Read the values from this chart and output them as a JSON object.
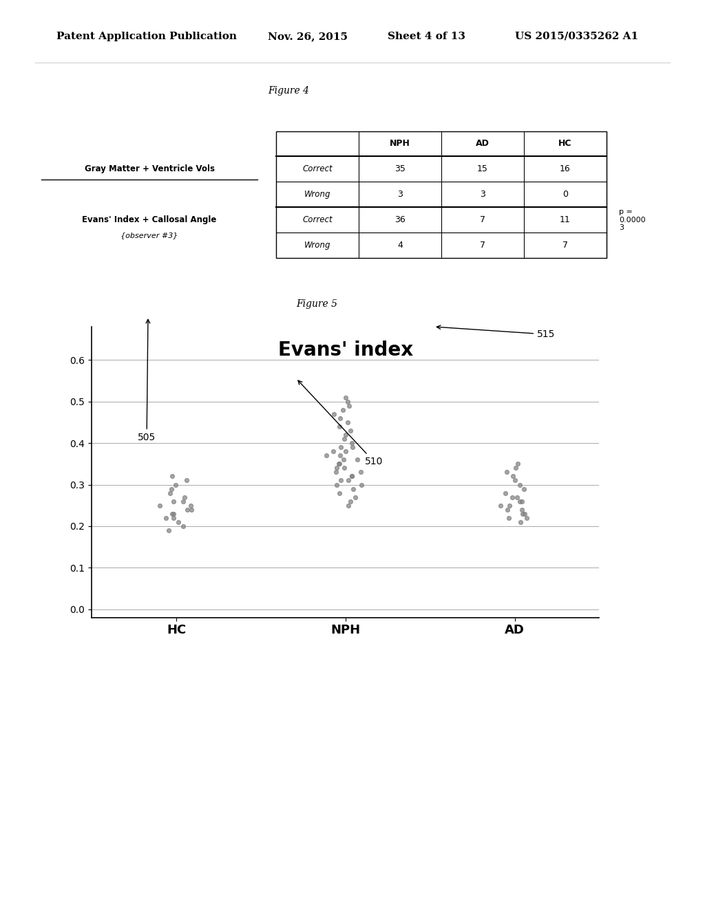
{
  "header_text": "Patent Application Publication",
  "date_text": "Nov. 26, 2015",
  "sheet_text": "Sheet 4 of 13",
  "patent_text": "US 2015/0335262 A1",
  "fig4_label": "Figure 4",
  "fig5_label": "Figure 5",
  "table_headers": [
    "",
    "NPH",
    "AD",
    "HC"
  ],
  "row_labels_1": [
    "Correct",
    "Wrong"
  ],
  "row_labels_2": [
    "Correct",
    "Wrong"
  ],
  "group1_label": "Gray Matter + Ventricle Vols",
  "group2_label": "Evans' Index + Callosal Angle",
  "group2_sublabel": "{observer #3}",
  "table_data": [
    [
      35,
      15,
      16
    ],
    [
      3,
      3,
      0
    ],
    [
      36,
      7,
      11
    ],
    [
      4,
      7,
      7
    ]
  ],
  "p_value_text": "p =\n0.0000\n3",
  "chart_title": "Evans' index",
  "chart_categories": [
    "HC",
    "NPH",
    "AD"
  ],
  "chart_yticks": [
    0.0,
    0.1,
    0.2,
    0.3,
    0.4,
    0.5,
    0.6
  ],
  "annotation_505": "505",
  "annotation_510": "510",
  "annotation_515": "515",
  "hc_data": [
    0.19,
    0.2,
    0.21,
    0.22,
    0.23,
    0.24,
    0.25,
    0.26,
    0.27,
    0.28,
    0.29,
    0.3,
    0.31,
    0.32,
    0.22,
    0.23,
    0.24,
    0.25,
    0.26
  ],
  "nph_data": [
    0.25,
    0.26,
    0.27,
    0.28,
    0.29,
    0.3,
    0.31,
    0.32,
    0.33,
    0.34,
    0.35,
    0.36,
    0.37,
    0.38,
    0.39,
    0.4,
    0.41,
    0.42,
    0.43,
    0.44,
    0.45,
    0.46,
    0.47,
    0.48,
    0.49,
    0.5,
    0.51,
    0.3,
    0.31,
    0.32,
    0.33,
    0.34,
    0.35,
    0.36,
    0.37,
    0.38,
    0.39
  ],
  "ad_data": [
    0.21,
    0.22,
    0.23,
    0.24,
    0.25,
    0.26,
    0.27,
    0.28,
    0.29,
    0.3,
    0.31,
    0.32,
    0.33,
    0.34,
    0.35,
    0.22,
    0.23,
    0.24,
    0.25,
    0.26,
    0.27
  ],
  "dot_color": "#808080",
  "dot_alpha": 0.7,
  "dot_size": 18,
  "background_color": "#ffffff",
  "plot_bg_color": "#ffffff",
  "grid_color": "#aaaaaa"
}
